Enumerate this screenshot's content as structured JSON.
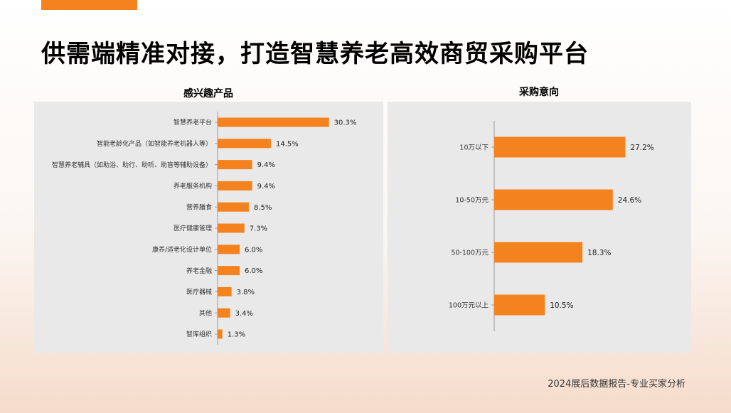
{
  "page": {
    "title": "供需端精准对接，打造智慧养老高效商贸采购平台",
    "footer": "2024展后数据报告-专业买家分析"
  },
  "colors": {
    "accent": "#f4821f",
    "bar": "#f4821f",
    "panel": "#e9e9e9"
  },
  "chart_data": [
    {
      "type": "bar",
      "orientation": "horizontal",
      "title": "感兴趣产品",
      "categories": [
        "智慧养老平台",
        "智能老龄化产品（如智能养老机器人等）",
        "智慧养老辅具（如助浴、助行、助听、助盲等辅助设备）",
        "养老服务机构",
        "营养膳食",
        "医疗健康管理",
        "康养/适老化设计单位",
        "养老金融",
        "医疗器械",
        "其他",
        "智库组织"
      ],
      "values": [
        30.3,
        14.5,
        9.4,
        9.4,
        8.5,
        7.3,
        6.0,
        6.0,
        3.8,
        3.4,
        1.3
      ],
      "value_labels": [
        "30.3%",
        "14.5%",
        "9.4%",
        "9.4%",
        "8.5%",
        "7.3%",
        "6.0%",
        "6.0%",
        "3.8%",
        "3.4%",
        "1.3%"
      ],
      "unit": "%",
      "xlim": [
        0,
        35
      ]
    },
    {
      "type": "bar",
      "orientation": "horizontal",
      "title": "采购意向",
      "categories": [
        "10万以下",
        "10-50万元",
        "50-100万元",
        "100万元以上"
      ],
      "values": [
        27.2,
        24.6,
        18.3,
        10.5
      ],
      "value_labels": [
        "27.2%",
        "24.6%",
        "18.3%",
        "10.5%"
      ],
      "unit": "%",
      "xlim": [
        0,
        30
      ]
    }
  ]
}
